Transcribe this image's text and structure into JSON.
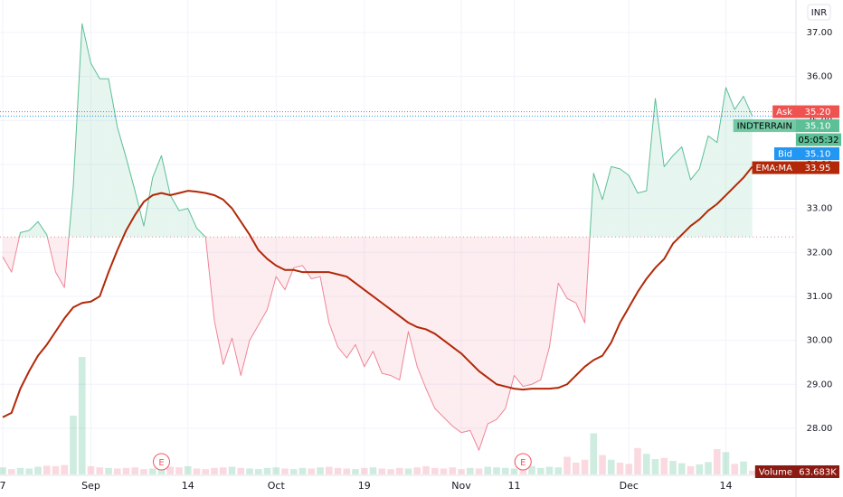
{
  "chart_data": {
    "type": "line",
    "currency": "INR",
    "categories": [
      "7",
      null,
      null,
      null,
      null,
      null,
      null,
      null,
      null,
      null,
      "Sep",
      null,
      null,
      null,
      null,
      null,
      null,
      null,
      null,
      null,
      null,
      "14",
      null,
      null,
      null,
      null,
      null,
      null,
      null,
      null,
      null,
      "Oct",
      null,
      null,
      null,
      null,
      null,
      null,
      null,
      null,
      null,
      "19",
      null,
      null,
      null,
      null,
      null,
      null,
      null,
      null,
      null,
      null,
      "Nov",
      null,
      null,
      null,
      null,
      null,
      "11",
      null,
      null,
      null,
      null,
      null,
      null,
      null,
      null,
      null,
      null,
      null,
      null,
      "Dec",
      null,
      null,
      null,
      null,
      null,
      null,
      null,
      null,
      null,
      null,
      "14",
      null,
      null,
      null
    ],
    "baseline": 32.35,
    "series": [
      {
        "name": "INDTERRAIN",
        "color": "#5cbf95",
        "negative_color": "#ef8597",
        "last_label": "35.10",
        "countdown": "05:05:32",
        "values": [
          31.9,
          31.55,
          32.45,
          32.5,
          32.7,
          32.4,
          31.55,
          31.2,
          33.5,
          37.2,
          36.3,
          35.95,
          35.95,
          34.85,
          34.15,
          33.4,
          32.6,
          33.7,
          34.2,
          33.3,
          32.95,
          33.0,
          32.55,
          32.35,
          30.45,
          29.45,
          30.05,
          29.2,
          30.0,
          30.35,
          30.7,
          31.45,
          31.15,
          31.65,
          31.7,
          31.4,
          31.45,
          30.4,
          29.85,
          29.6,
          29.9,
          29.4,
          29.75,
          29.25,
          29.2,
          29.1,
          30.2,
          29.4,
          28.9,
          28.45,
          28.25,
          28.05,
          27.9,
          27.95,
          27.5,
          28.1,
          28.2,
          28.45,
          29.2,
          28.95,
          29.0,
          29.1,
          29.85,
          31.3,
          30.95,
          30.85,
          30.4,
          33.8,
          33.2,
          33.95,
          33.9,
          33.75,
          33.35,
          33.4,
          35.5,
          33.95,
          34.2,
          34.4,
          33.65,
          33.9,
          34.65,
          34.5,
          35.75,
          35.25,
          35.55,
          35.1
        ]
      },
      {
        "name": "EMA:MA",
        "color": "#b22808",
        "last_label": "33.95",
        "values": [
          28.25,
          28.35,
          28.9,
          29.3,
          29.65,
          29.9,
          30.2,
          30.5,
          30.75,
          30.85,
          30.88,
          31.0,
          31.55,
          32.05,
          32.5,
          32.85,
          33.15,
          33.3,
          33.35,
          33.3,
          33.35,
          33.4,
          33.38,
          33.35,
          33.3,
          33.2,
          33.0,
          32.7,
          32.4,
          32.05,
          31.85,
          31.7,
          31.6,
          31.6,
          31.55,
          31.55,
          31.55,
          31.55,
          31.5,
          31.45,
          31.3,
          31.15,
          31.0,
          30.85,
          30.7,
          30.55,
          30.4,
          30.3,
          30.25,
          30.15,
          30.0,
          29.85,
          29.7,
          29.5,
          29.3,
          29.15,
          29.0,
          28.95,
          28.9,
          28.88,
          28.9,
          28.9,
          28.9,
          28.92,
          29.0,
          29.2,
          29.4,
          29.55,
          29.65,
          29.95,
          30.4,
          30.75,
          31.1,
          31.4,
          31.65,
          31.85,
          32.2,
          32.4,
          32.6,
          32.75,
          32.95,
          33.1,
          33.3,
          33.5,
          33.7,
          33.95
        ]
      }
    ],
    "price_lines": [
      {
        "name": "Ask",
        "value": 35.2,
        "label": "35.20",
        "color": "#ef5350"
      },
      {
        "name": "Bid",
        "value": 35.1,
        "label": "35.10",
        "color": "#2196f3"
      }
    ],
    "volume": {
      "name": "Volume",
      "last_label": "63.683K",
      "values": [
        120,
        90,
        110,
        100,
        130,
        150,
        140,
        160,
        1000,
        2000,
        140,
        120,
        110,
        100,
        110,
        120,
        90,
        100,
        110,
        130,
        120,
        140,
        100,
        90,
        110,
        120,
        130,
        110,
        100,
        90,
        110,
        120,
        100,
        90,
        110,
        100,
        120,
        130,
        110,
        100,
        90,
        110,
        120,
        100,
        90,
        110,
        100,
        120,
        140,
        110,
        100,
        120,
        90,
        110,
        100,
        130,
        120,
        110,
        100,
        120,
        140,
        110,
        130,
        120,
        300,
        200,
        250,
        700,
        330,
        250,
        200,
        180,
        450,
        350,
        260,
        280,
        230,
        190,
        140,
        170,
        210,
        430,
        380,
        180,
        220,
        63.683
      ]
    },
    "events": [
      {
        "category_index": 18,
        "label": "E"
      },
      {
        "category_index": 59,
        "label": "E"
      }
    ],
    "ylim": [
      26.95,
      37.74
    ],
    "yticks": [
      {
        "value": 28,
        "label": "28.00"
      },
      {
        "value": 29,
        "label": "29.00"
      },
      {
        "value": 30,
        "label": "30.00"
      },
      {
        "value": 31,
        "label": "31.00"
      },
      {
        "value": 32,
        "label": "32.00"
      },
      {
        "value": 33,
        "label": "33.00"
      },
      {
        "value": 34,
        "label": "34.00"
      },
      {
        "value": 35,
        "label": "35.00"
      },
      {
        "value": 36,
        "label": "36.00"
      },
      {
        "value": 37,
        "label": "37.00"
      }
    ],
    "grid": true
  }
}
